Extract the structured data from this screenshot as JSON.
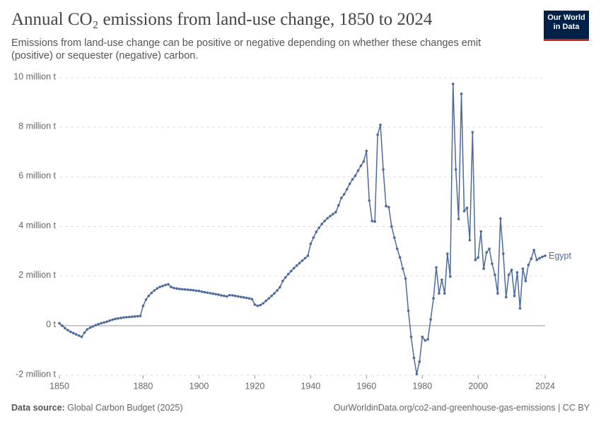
{
  "logo": "Our World in Data",
  "chart_data": {
    "type": "line",
    "title": "Annual CO₂ emissions from land-use change, 1850 to 2024",
    "subtitle": "Emissions from land-use change can be positive or negative depending on whether these changes emit (positive) or sequester (negative) carbon.",
    "source_label": "Data source:",
    "source": "Global Carbon Budget (2025)",
    "url": "OurWorldinData.org/co2-and-greenhouse-gas-emissions | CC BY",
    "grid": true,
    "xlim": [
      1850,
      2024
    ],
    "xticks": [
      1850,
      1880,
      1900,
      1920,
      1940,
      1960,
      1980,
      2000,
      2024
    ],
    "ylim": [
      -2,
      10
    ],
    "yticks": [
      {
        "value": -2,
        "label": "-2 million t"
      },
      {
        "value": 0,
        "label": "0 t"
      },
      {
        "value": 2,
        "label": "2 million t"
      },
      {
        "value": 4,
        "label": "4 million t"
      },
      {
        "value": 6,
        "label": "6 million t"
      },
      {
        "value": 8,
        "label": "8 million t"
      },
      {
        "value": 10,
        "label": "10 million t"
      }
    ],
    "x": [
      1850,
      1851,
      1852,
      1853,
      1854,
      1855,
      1856,
      1857,
      1858,
      1859,
      1860,
      1861,
      1862,
      1863,
      1864,
      1865,
      1866,
      1867,
      1868,
      1869,
      1870,
      1871,
      1872,
      1873,
      1874,
      1875,
      1876,
      1877,
      1878,
      1879,
      1880,
      1881,
      1882,
      1883,
      1884,
      1885,
      1886,
      1887,
      1888,
      1889,
      1890,
      1891,
      1892,
      1893,
      1894,
      1895,
      1896,
      1897,
      1898,
      1899,
      1900,
      1901,
      1902,
      1903,
      1904,
      1905,
      1906,
      1907,
      1908,
      1909,
      1910,
      1911,
      1912,
      1913,
      1914,
      1915,
      1916,
      1917,
      1918,
      1919,
      1920,
      1921,
      1922,
      1923,
      1924,
      1925,
      1926,
      1927,
      1928,
      1929,
      1930,
      1931,
      1932,
      1933,
      1934,
      1935,
      1936,
      1937,
      1938,
      1939,
      1940,
      1941,
      1942,
      1943,
      1944,
      1945,
      1946,
      1947,
      1948,
      1949,
      1950,
      1951,
      1952,
      1953,
      1954,
      1955,
      1956,
      1957,
      1958,
      1959,
      1960,
      1961,
      1962,
      1963,
      1964,
      1965,
      1966,
      1967,
      1968,
      1969,
      1970,
      1971,
      1972,
      1973,
      1974,
      1975,
      1976,
      1977,
      1978,
      1979,
      1980,
      1981,
      1982,
      1983,
      1984,
      1985,
      1986,
      1987,
      1988,
      1989,
      1990,
      1991,
      1992,
      1993,
      1994,
      1995,
      1996,
      1997,
      1998,
      1999,
      2000,
      2001,
      2002,
      2003,
      2004,
      2005,
      2006,
      2007,
      2008,
      2009,
      2010,
      2011,
      2012,
      2013,
      2014,
      2015,
      2016,
      2017,
      2018,
      2019,
      2020,
      2021,
      2022,
      2023,
      2024
    ],
    "series": [
      {
        "name": "Egypt",
        "color": "#4c6a9c",
        "values": [
          0.1,
          0.0,
          -0.1,
          -0.18,
          -0.25,
          -0.3,
          -0.35,
          -0.4,
          -0.45,
          -0.28,
          -0.15,
          -0.08,
          -0.03,
          0.02,
          0.06,
          0.1,
          0.13,
          0.16,
          0.2,
          0.24,
          0.27,
          0.29,
          0.31,
          0.33,
          0.34,
          0.35,
          0.36,
          0.37,
          0.38,
          0.39,
          0.8,
          1.05,
          1.2,
          1.32,
          1.42,
          1.5,
          1.56,
          1.6,
          1.64,
          1.67,
          1.56,
          1.52,
          1.5,
          1.48,
          1.47,
          1.46,
          1.45,
          1.44,
          1.43,
          1.41,
          1.4,
          1.37,
          1.35,
          1.33,
          1.31,
          1.29,
          1.27,
          1.25,
          1.22,
          1.2,
          1.18,
          1.23,
          1.22,
          1.2,
          1.18,
          1.16,
          1.14,
          1.12,
          1.1,
          1.07,
          0.85,
          0.8,
          0.83,
          0.9,
          1.0,
          1.1,
          1.2,
          1.3,
          1.42,
          1.55,
          1.8,
          1.95,
          2.08,
          2.2,
          2.32,
          2.42,
          2.52,
          2.62,
          2.72,
          2.82,
          3.3,
          3.55,
          3.78,
          3.95,
          4.1,
          4.22,
          4.33,
          4.42,
          4.5,
          4.58,
          4.85,
          5.15,
          5.3,
          5.5,
          5.72,
          5.9,
          6.05,
          6.25,
          6.45,
          6.62,
          7.05,
          5.05,
          4.22,
          4.2,
          7.7,
          8.1,
          6.3,
          4.82,
          4.78,
          4.0,
          3.55,
          3.1,
          2.75,
          2.3,
          1.9,
          0.6,
          -0.45,
          -1.3,
          -1.95,
          -1.45,
          -0.45,
          -0.6,
          -0.55,
          0.25,
          1.1,
          2.35,
          1.3,
          1.85,
          1.3,
          2.9,
          1.98,
          9.75,
          6.3,
          4.3,
          9.35,
          4.62,
          4.75,
          3.45,
          7.8,
          2.65,
          2.75,
          3.8,
          2.3,
          2.95,
          3.1,
          2.5,
          2.05,
          1.3,
          4.32,
          2.9,
          1.15,
          2.05,
          2.25,
          1.2,
          2.15,
          0.7,
          2.3,
          1.8,
          2.45,
          2.7,
          3.05,
          2.65,
          2.72,
          2.78,
          2.82
        ]
      }
    ]
  }
}
